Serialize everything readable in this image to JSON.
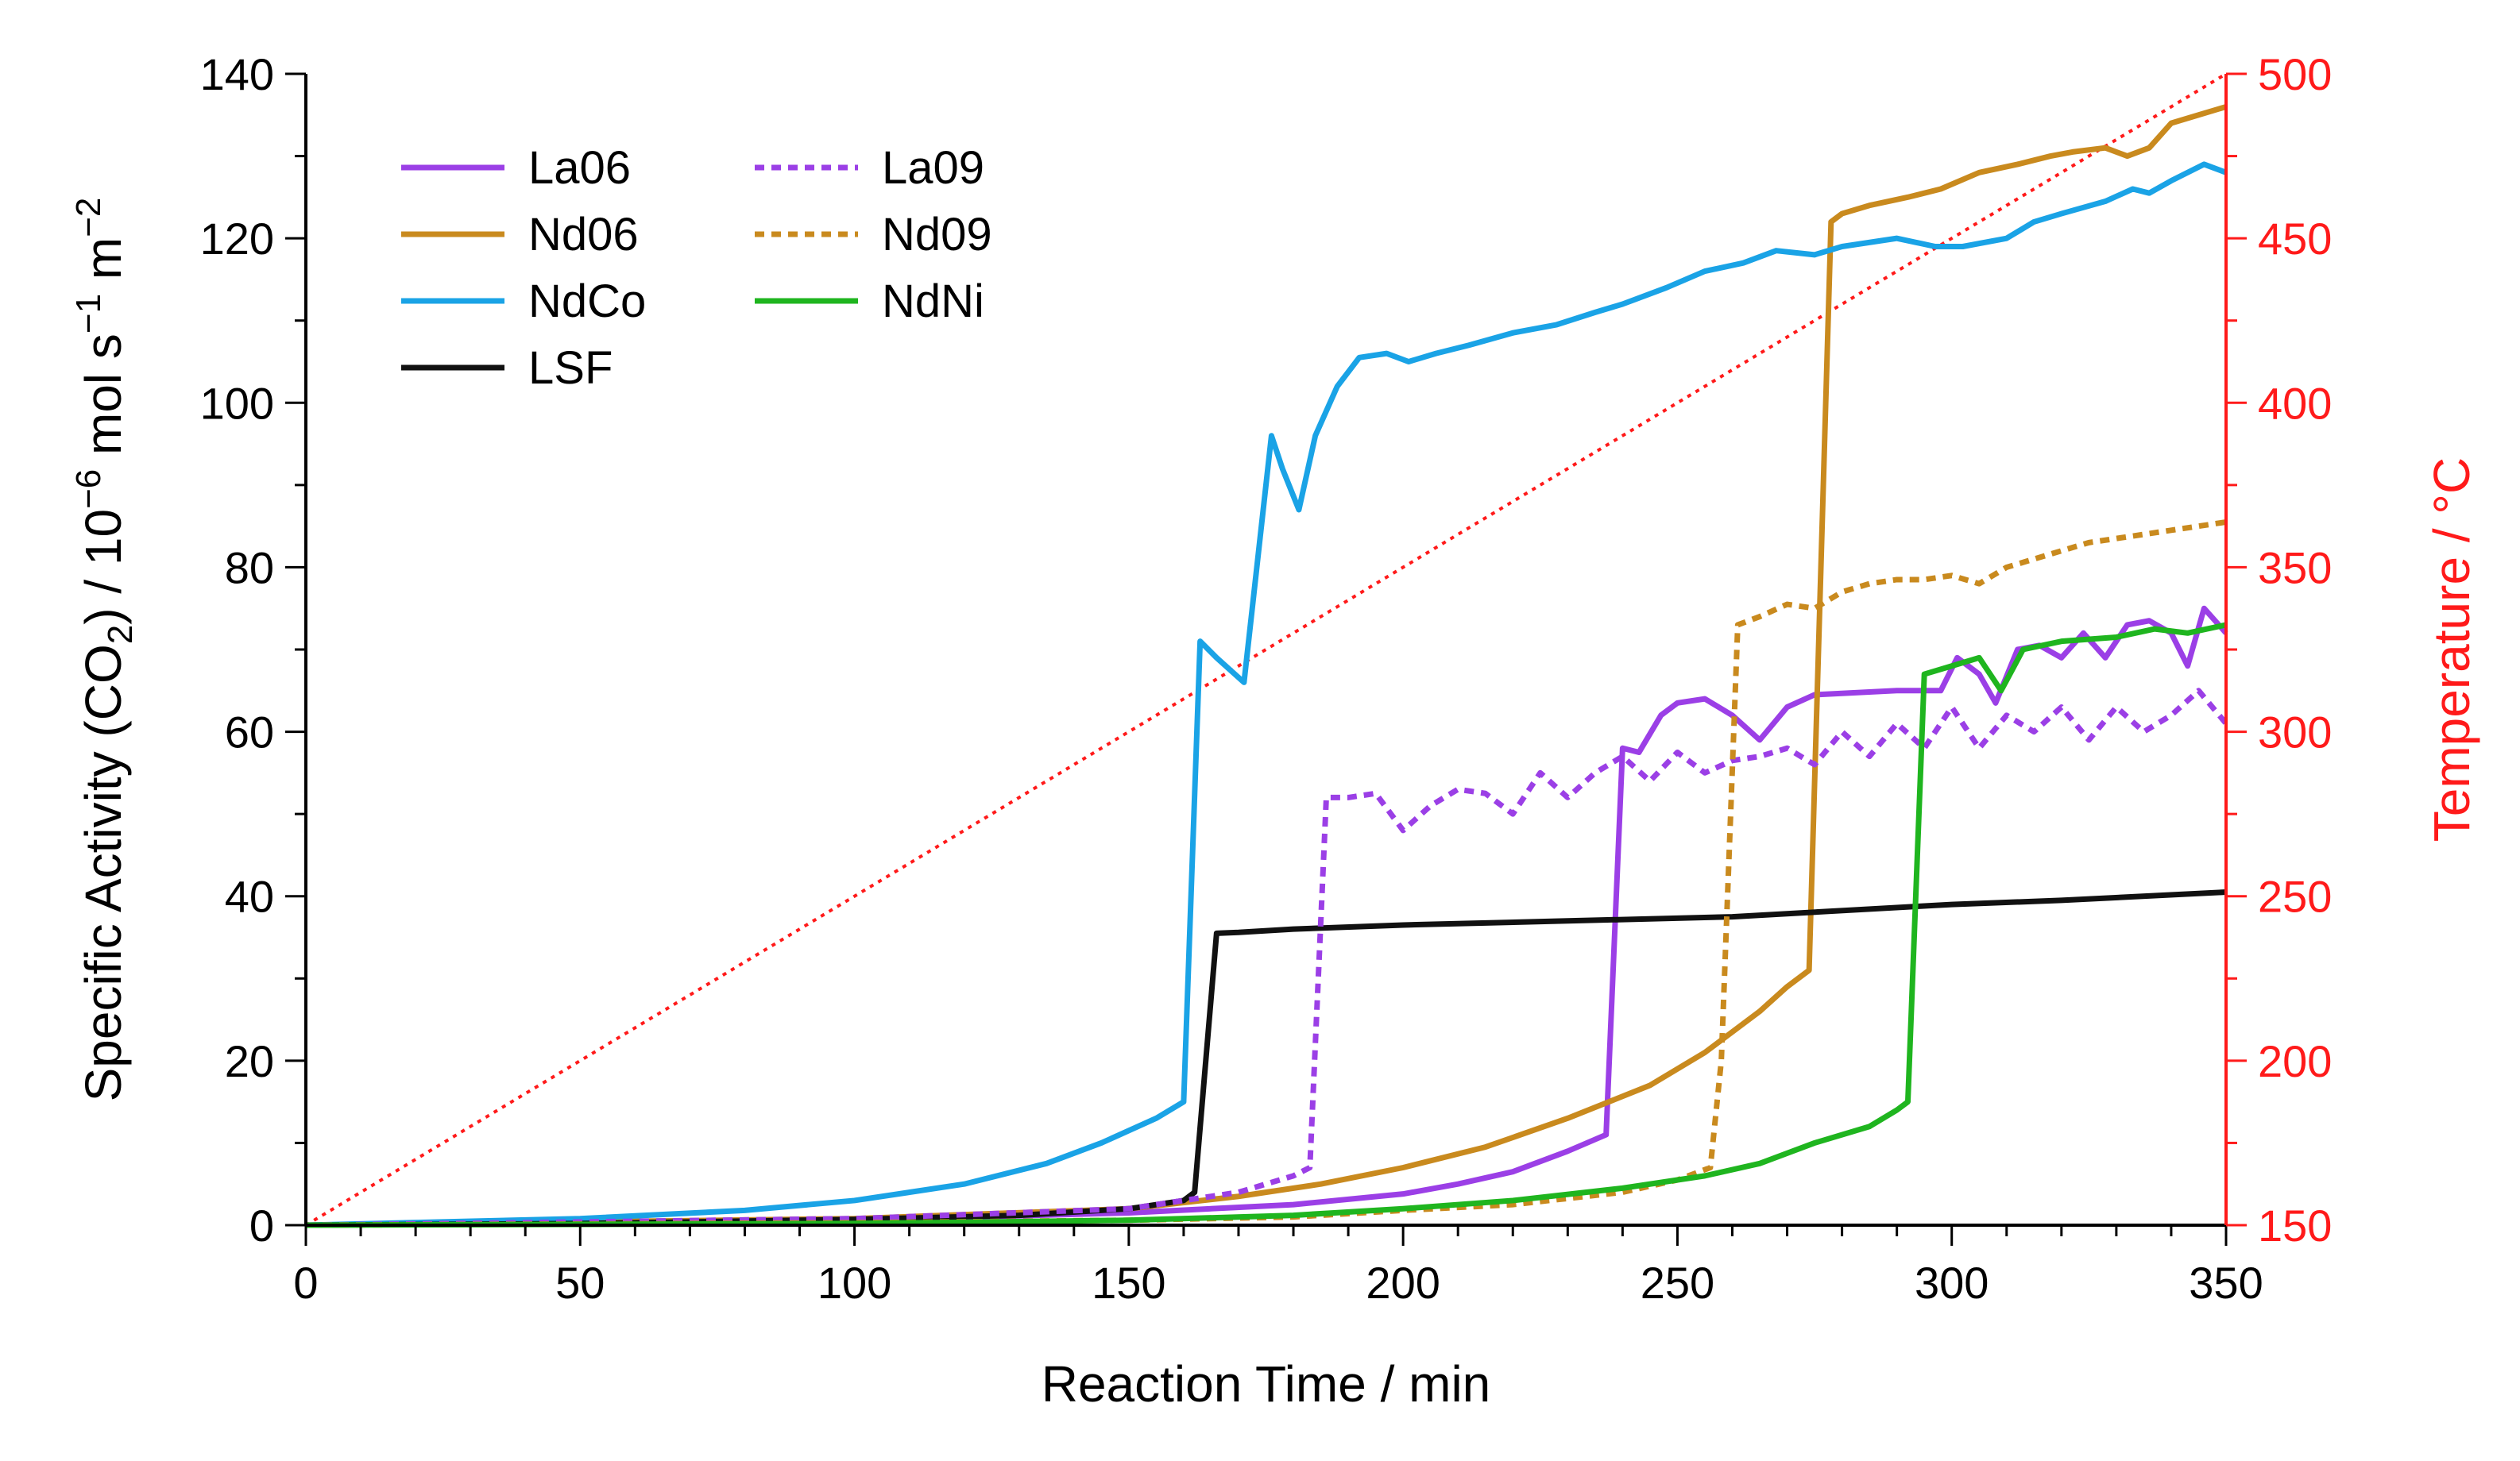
{
  "chart_data": {
    "type": "line",
    "title": "",
    "xlabel": "Reaction Time / min",
    "ylabel": {
      "main": "Specific Activity (CO",
      "sub2": "2",
      "mid": ") / 10",
      "sup6": "−6",
      "mol": " mol s",
      "sup1": "−1",
      "m": " m",
      "sup2": "−2"
    },
    "y2label": "Temperature / °C",
    "xlim": [
      0,
      350
    ],
    "ylim": [
      0,
      140
    ],
    "y2lim": [
      150,
      500
    ],
    "xticks": [
      0,
      50,
      100,
      150,
      200,
      250,
      300,
      350
    ],
    "yticks": [
      0,
      20,
      40,
      60,
      80,
      100,
      120,
      140
    ],
    "y2ticks": [
      150,
      200,
      250,
      300,
      350,
      400,
      450,
      500
    ],
    "legend_position": "top-left",
    "colors": {
      "La": "#9b3fe6",
      "Nd": "#c98a1e",
      "NdCo": "#1aa3e6",
      "LSF": "#111111",
      "NdNi": "#1fb51f",
      "temp": "#ff1a1a",
      "axis": "#000000"
    },
    "series": [
      {
        "name": "La06",
        "color": "#9b3fe6",
        "dash": false,
        "points": [
          [
            0,
            0
          ],
          [
            100,
            0.6
          ],
          [
            150,
            1.5
          ],
          [
            180,
            2.5
          ],
          [
            200,
            3.8
          ],
          [
            210,
            5
          ],
          [
            220,
            6.5
          ],
          [
            230,
            9
          ],
          [
            237,
            11
          ],
          [
            240,
            58
          ],
          [
            243,
            57.5
          ],
          [
            247,
            62
          ],
          [
            250,
            63.5
          ],
          [
            255,
            64
          ],
          [
            260,
            62
          ],
          [
            265,
            59
          ],
          [
            270,
            63
          ],
          [
            275,
            64.5
          ],
          [
            290,
            65
          ],
          [
            298,
            65
          ],
          [
            301,
            69
          ],
          [
            305,
            67
          ],
          [
            308,
            63.5
          ],
          [
            312,
            70
          ],
          [
            316,
            70.5
          ],
          [
            320,
            69
          ],
          [
            324,
            72
          ],
          [
            328,
            69
          ],
          [
            332,
            73
          ],
          [
            336,
            73.5
          ],
          [
            340,
            72
          ],
          [
            343,
            68
          ],
          [
            346,
            75
          ],
          [
            350,
            72
          ]
        ]
      },
      {
        "name": "Nd06",
        "color": "#c98a1e",
        "dash": false,
        "points": [
          [
            0,
            0
          ],
          [
            100,
            0.8
          ],
          [
            150,
            2
          ],
          [
            170,
            3.5
          ],
          [
            185,
            5
          ],
          [
            200,
            7
          ],
          [
            215,
            9.5
          ],
          [
            230,
            13
          ],
          [
            245,
            17
          ],
          [
            255,
            21
          ],
          [
            265,
            26
          ],
          [
            270,
            29
          ],
          [
            274,
            31
          ],
          [
            278,
            122
          ],
          [
            280,
            123
          ],
          [
            285,
            124
          ],
          [
            292,
            125
          ],
          [
            298,
            126
          ],
          [
            305,
            128
          ],
          [
            312,
            129
          ],
          [
            318,
            130
          ],
          [
            322,
            130.5
          ],
          [
            328,
            131
          ],
          [
            332,
            130
          ],
          [
            336,
            131
          ],
          [
            340,
            134
          ],
          [
            345,
            135
          ],
          [
            350,
            136
          ]
        ]
      },
      {
        "name": "NdCo",
        "color": "#1aa3e6",
        "dash": false,
        "points": [
          [
            0,
            0
          ],
          [
            50,
            0.8
          ],
          [
            80,
            1.8
          ],
          [
            100,
            3
          ],
          [
            120,
            5
          ],
          [
            135,
            7.5
          ],
          [
            145,
            10
          ],
          [
            155,
            13
          ],
          [
            160,
            15
          ],
          [
            163,
            71
          ],
          [
            166,
            69
          ],
          [
            171,
            66
          ],
          [
            176,
            96
          ],
          [
            178,
            92
          ],
          [
            181,
            87
          ],
          [
            184,
            96
          ],
          [
            188,
            102
          ],
          [
            192,
            105.5
          ],
          [
            197,
            106
          ],
          [
            201,
            105
          ],
          [
            206,
            106
          ],
          [
            212,
            107
          ],
          [
            220,
            108.5
          ],
          [
            228,
            109.5
          ],
          [
            235,
            111
          ],
          [
            240,
            112
          ],
          [
            248,
            114
          ],
          [
            255,
            116
          ],
          [
            262,
            117
          ],
          [
            268,
            118.5
          ],
          [
            275,
            118
          ],
          [
            280,
            119
          ],
          [
            290,
            120
          ],
          [
            297,
            119
          ],
          [
            302,
            119
          ],
          [
            310,
            120
          ],
          [
            315,
            122
          ],
          [
            320,
            123
          ],
          [
            328,
            124.5
          ],
          [
            333,
            126
          ],
          [
            336,
            125.5
          ],
          [
            340,
            127
          ],
          [
            346,
            129
          ],
          [
            350,
            128
          ]
        ]
      },
      {
        "name": "LSF",
        "color": "#111111",
        "dash": false,
        "points": [
          [
            0,
            0
          ],
          [
            50,
            0.2
          ],
          [
            100,
            0.7
          ],
          [
            130,
            1.2
          ],
          [
            150,
            2
          ],
          [
            160,
            3
          ],
          [
            162,
            4
          ],
          [
            166,
            35.5
          ],
          [
            170,
            35.6
          ],
          [
            180,
            36
          ],
          [
            200,
            36.5
          ],
          [
            230,
            37
          ],
          [
            260,
            37.5
          ],
          [
            300,
            39
          ],
          [
            320,
            39.5
          ],
          [
            350,
            40.5
          ]
        ]
      },
      {
        "name": "La09",
        "color": "#9b3fe6",
        "dash": true,
        "points": [
          [
            0,
            0
          ],
          [
            100,
            0.8
          ],
          [
            150,
            2
          ],
          [
            170,
            4
          ],
          [
            180,
            6
          ],
          [
            183,
            7
          ],
          [
            186,
            52
          ],
          [
            190,
            52
          ],
          [
            195,
            52.5
          ],
          [
            200,
            48
          ],
          [
            205,
            51
          ],
          [
            210,
            53
          ],
          [
            215,
            52.5
          ],
          [
            220,
            50
          ],
          [
            225,
            55
          ],
          [
            230,
            52
          ],
          [
            235,
            55
          ],
          [
            240,
            57
          ],
          [
            245,
            54
          ],
          [
            250,
            57.5
          ],
          [
            255,
            55
          ],
          [
            260,
            56.5
          ],
          [
            265,
            57
          ],
          [
            270,
            58
          ],
          [
            275,
            56
          ],
          [
            280,
            60
          ],
          [
            285,
            57
          ],
          [
            290,
            61
          ],
          [
            295,
            58
          ],
          [
            300,
            63
          ],
          [
            305,
            58
          ],
          [
            310,
            62
          ],
          [
            315,
            60
          ],
          [
            320,
            63
          ],
          [
            325,
            59
          ],
          [
            330,
            63
          ],
          [
            335,
            60
          ],
          [
            340,
            62
          ],
          [
            345,
            65
          ],
          [
            350,
            61
          ]
        ]
      },
      {
        "name": "Nd09",
        "color": "#c98a1e",
        "dash": true,
        "points": [
          [
            0,
            0
          ],
          [
            100,
            0.3
          ],
          [
            150,
            0.6
          ],
          [
            180,
            1
          ],
          [
            200,
            1.8
          ],
          [
            220,
            2.5
          ],
          [
            240,
            4
          ],
          [
            250,
            5.5
          ],
          [
            256,
            7
          ],
          [
            258,
            20
          ],
          [
            261,
            73
          ],
          [
            265,
            74
          ],
          [
            270,
            75.5
          ],
          [
            275,
            75
          ],
          [
            280,
            77
          ],
          [
            285,
            78
          ],
          [
            290,
            78.5
          ],
          [
            295,
            78.5
          ],
          [
            300,
            79
          ],
          [
            305,
            78
          ],
          [
            310,
            80
          ],
          [
            315,
            81
          ],
          [
            320,
            82
          ],
          [
            325,
            83
          ],
          [
            330,
            83.5
          ],
          [
            335,
            84
          ],
          [
            340,
            84.5
          ],
          [
            345,
            85
          ],
          [
            350,
            85.5
          ]
        ]
      },
      {
        "name": "NdNi",
        "color": "#1fb51f",
        "dash": false,
        "points": [
          [
            0,
            0
          ],
          [
            100,
            0.2
          ],
          [
            150,
            0.6
          ],
          [
            180,
            1.2
          ],
          [
            200,
            2
          ],
          [
            220,
            3
          ],
          [
            240,
            4.5
          ],
          [
            255,
            6
          ],
          [
            265,
            7.5
          ],
          [
            275,
            10
          ],
          [
            285,
            12
          ],
          [
            290,
            14
          ],
          [
            292,
            15
          ],
          [
            295,
            67
          ],
          [
            300,
            68
          ],
          [
            305,
            69
          ],
          [
            309,
            65
          ],
          [
            313,
            70
          ],
          [
            320,
            71
          ],
          [
            330,
            71.5
          ],
          [
            337,
            72.5
          ],
          [
            343,
            72
          ],
          [
            350,
            73
          ]
        ]
      }
    ],
    "temperature_line": {
      "name": "Temperature",
      "color": "#ff1a1a",
      "dash": "dotted",
      "points": [
        [
          0,
          150
        ],
        [
          350,
          500
        ]
      ]
    }
  }
}
